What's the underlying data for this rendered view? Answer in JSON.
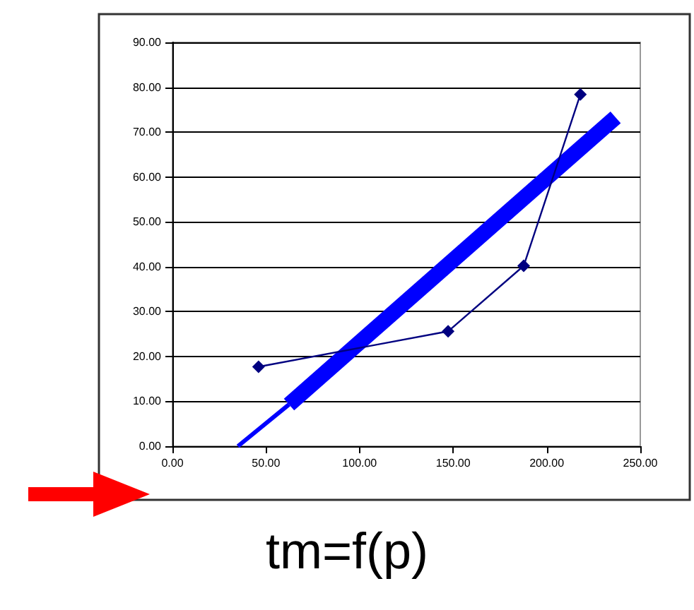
{
  "chart_data": {
    "type": "line",
    "xlim": [
      0,
      250
    ],
    "ylim": [
      0,
      90
    ],
    "xticks": [
      {
        "value": 0,
        "label": "0.00"
      },
      {
        "value": 50,
        "label": "50.00"
      },
      {
        "value": 100,
        "label": "100.00"
      },
      {
        "value": 150,
        "label": "150.00"
      },
      {
        "value": 200,
        "label": "200.00"
      },
      {
        "value": 250,
        "label": "250.00"
      }
    ],
    "yticks": [
      {
        "value": 0,
        "label": "0.00"
      },
      {
        "value": 10,
        "label": "10.00"
      },
      {
        "value": 20,
        "label": "20.00"
      },
      {
        "value": 30,
        "label": "30.00"
      },
      {
        "value": 40,
        "label": "40.00"
      },
      {
        "value": 50,
        "label": "50.00"
      },
      {
        "value": 60,
        "label": "60.00"
      },
      {
        "value": 70,
        "label": "70.00"
      },
      {
        "value": 80,
        "label": "80.00"
      },
      {
        "value": 90,
        "label": "90.00"
      }
    ],
    "grid": "y",
    "series": [
      {
        "type": "line",
        "color": "#000080",
        "marker": "diamond",
        "x": [
          46,
          147.3,
          187.7,
          218
        ],
        "values": [
          17.7,
          25.6,
          40.2,
          78.4
        ]
      },
      {
        "type": "line",
        "color": "#0000ff",
        "marker": "none",
        "x": [
          35,
          62.3
        ],
        "values": [
          0,
          9.3
        ]
      },
      {
        "type": "line",
        "color": "#0000ff",
        "marker": "none",
        "x": [
          62.3,
          236.8
        ],
        "values": [
          9.3,
          73.3
        ]
      }
    ],
    "annotations": [
      "tm=f(p)"
    ]
  }
}
